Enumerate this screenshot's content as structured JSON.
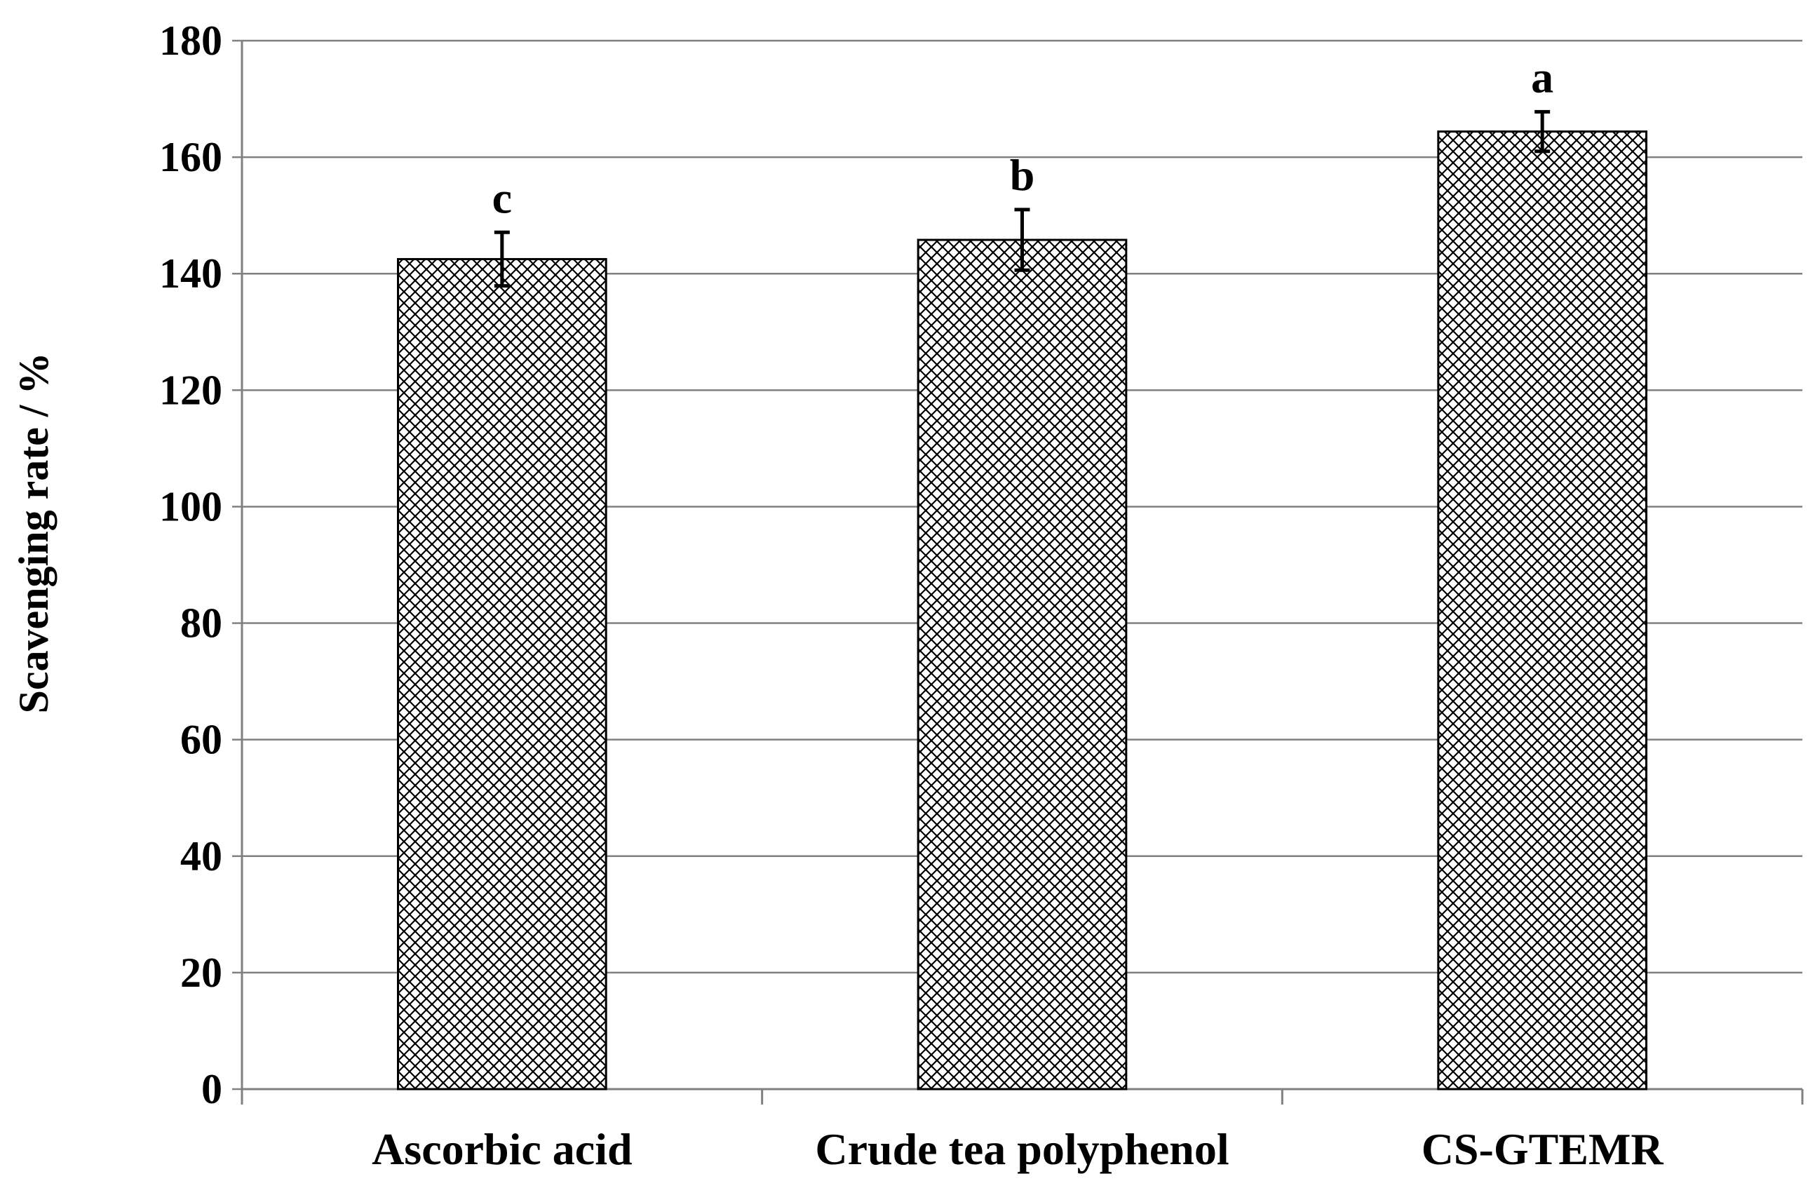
{
  "chart_data": {
    "type": "bar",
    "title": "",
    "xlabel": "",
    "ylabel": "Scavenging rate / %",
    "ylim": [
      0,
      180
    ],
    "yticks": [
      0,
      20,
      40,
      60,
      80,
      100,
      120,
      140,
      160,
      180
    ],
    "grid": true,
    "categories": [
      "Ascorbic acid",
      "Crude tea polyphenol",
      "CS-GTEMR"
    ],
    "values": [
      142.5,
      145.8,
      164.4
    ],
    "errors": [
      4.6,
      5.2,
      3.4
    ],
    "significance_labels": [
      "c",
      "b",
      "a"
    ],
    "bar_fill": "crosshatch",
    "colors": {
      "bar_stroke": "#000000",
      "hatch": "#000000",
      "grid": "#808080",
      "axis": "#808080"
    }
  }
}
